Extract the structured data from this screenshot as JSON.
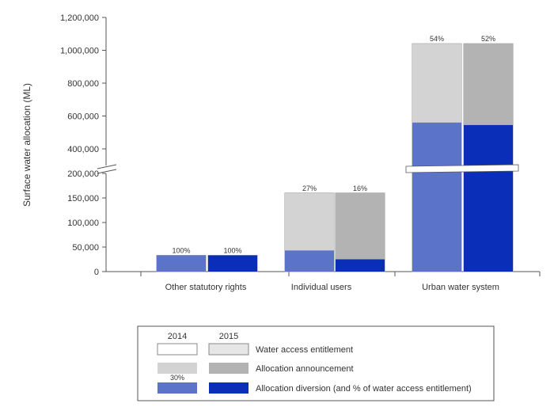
{
  "chart_data": {
    "type": "bar",
    "ylabel": "Surface water allocation (ML)",
    "categories": [
      "Other statutory rights",
      "Individual users",
      "Urban water system"
    ],
    "y_axis": {
      "broken": true,
      "lower_ticks": [
        0,
        50000,
        100000,
        150000,
        200000
      ],
      "upper_ticks": [
        400000,
        600000,
        800000,
        1000000,
        1200000
      ],
      "lower_tick_labels": [
        "0",
        "50,000",
        "100,000",
        "150,000",
        "200,000"
      ],
      "upper_tick_labels": [
        "400,000",
        "600,000",
        "800,000",
        "1,000,000",
        "1,200,000"
      ]
    },
    "years": [
      "2014",
      "2015"
    ],
    "series": [
      {
        "name": "Water access entitlement",
        "values_2014": [
          33000,
          160000,
          1040000
        ],
        "values_2015": [
          33000,
          160000,
          1040000
        ]
      },
      {
        "name": "Allocation announcement",
        "values_2014": [
          33000,
          160000,
          1040000
        ],
        "values_2015": [
          33000,
          160000,
          1040000
        ]
      },
      {
        "name": "Allocation diversion (and % of water access entitlement)",
        "values_2014": [
          33000,
          43000,
          560000
        ],
        "values_2015": [
          33000,
          25000,
          545000
        ]
      }
    ],
    "percent_labels_2014": [
      "100%",
      "27%",
      "54%"
    ],
    "percent_labels_2015": [
      "100%",
      "16%",
      "52%"
    ],
    "colors": {
      "announcement_2014": "#d3d3d3",
      "announcement_2015": "#b3b3b3",
      "diversion_2014": "#5b73c9",
      "diversion_2015": "#0a2eb8",
      "entitlement_2014": "#ffffff",
      "entitlement_2015": "#e6e6e6",
      "outline": "#999999"
    },
    "legend": {
      "year_labels": [
        "2014",
        "2015"
      ],
      "items": [
        "Water access entitlement",
        "Allocation announcement",
        "Allocation diversion (and % of water access entitlement)"
      ],
      "sample_percent": "30%"
    }
  }
}
